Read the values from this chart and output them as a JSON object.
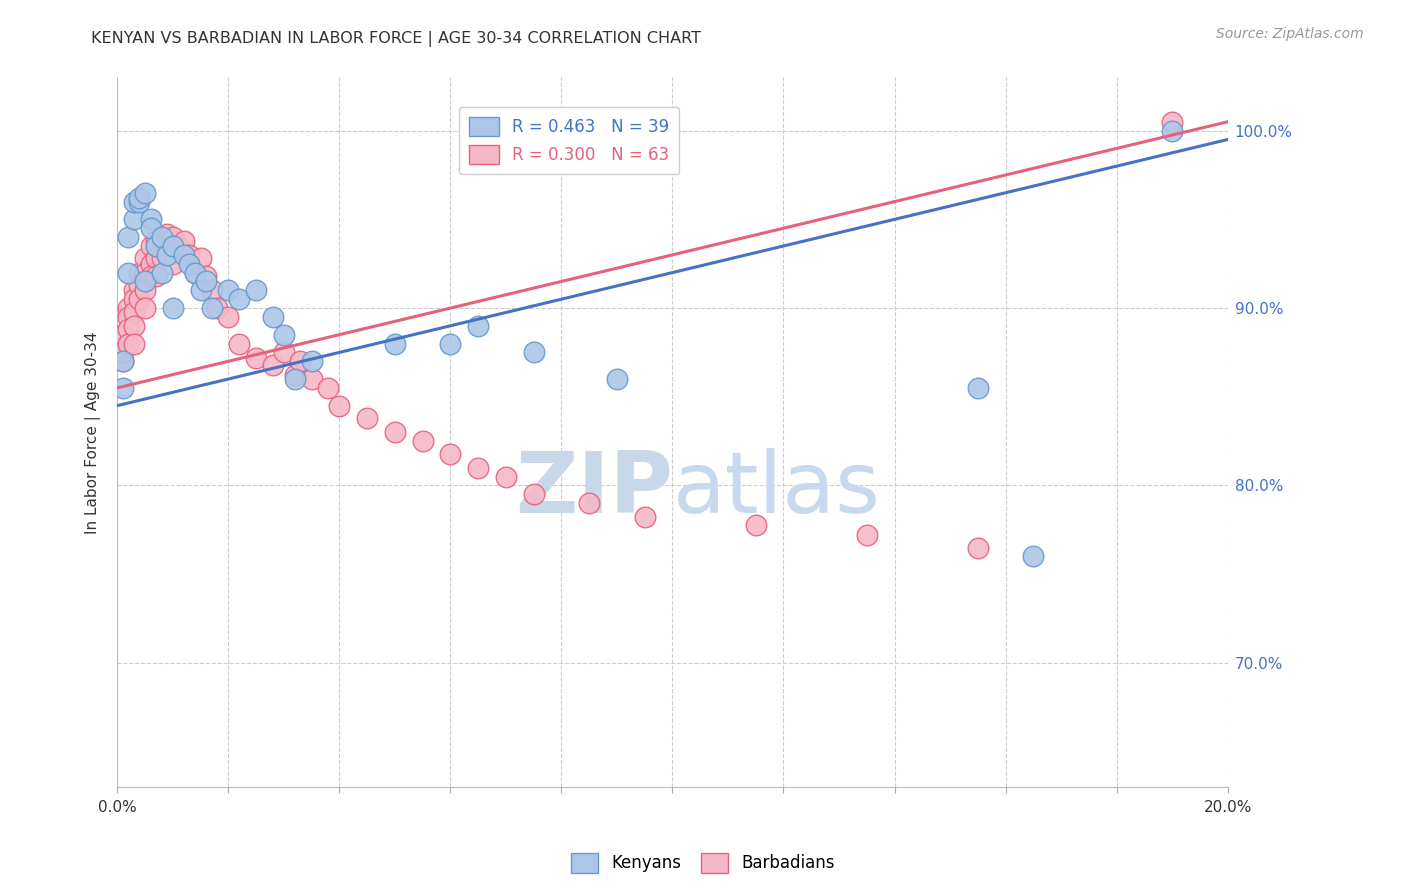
{
  "title": "KENYAN VS BARBADIAN IN LABOR FORCE | AGE 30-34 CORRELATION CHART",
  "source_text": "Source: ZipAtlas.com",
  "ylabel": "In Labor Force | Age 30-34",
  "xlim": [
    0.0,
    0.2
  ],
  "ylim": [
    0.63,
    1.03
  ],
  "ytick_positions": [
    0.7,
    0.8,
    0.9,
    1.0
  ],
  "ytick_labels": [
    "70.0%",
    "80.0%",
    "90.0%",
    "100.0%"
  ],
  "legend_label_blue": "R = 0.463   N = 39",
  "legend_label_pink": "R = 0.300   N = 63",
  "blue_line_color": "#4472c4",
  "pink_line_color": "#e8607a",
  "dot_blue_face": "#adc6e8",
  "dot_blue_edge": "#6699cc",
  "dot_pink_face": "#f5b8c8",
  "dot_pink_edge": "#e8607a",
  "watermark_zip_color": "#c8d8e8",
  "watermark_atlas_color": "#c8d8ee",
  "background_color": "#ffffff",
  "grid_color": "#cccccc",
  "kenyan_x": [
    0.001,
    0.001,
    0.002,
    0.002,
    0.003,
    0.003,
    0.004,
    0.004,
    0.005,
    0.005,
    0.006,
    0.006,
    0.007,
    0.008,
    0.008,
    0.009,
    0.01,
    0.01,
    0.012,
    0.013,
    0.014,
    0.015,
    0.016,
    0.017,
    0.02,
    0.022,
    0.025,
    0.028,
    0.03,
    0.032,
    0.035,
    0.05,
    0.06,
    0.065,
    0.075,
    0.09,
    0.155,
    0.165,
    0.19
  ],
  "kenyan_y": [
    0.855,
    0.87,
    0.92,
    0.94,
    0.95,
    0.96,
    0.96,
    0.962,
    0.965,
    0.915,
    0.95,
    0.945,
    0.935,
    0.94,
    0.92,
    0.93,
    0.935,
    0.9,
    0.93,
    0.925,
    0.92,
    0.91,
    0.915,
    0.9,
    0.91,
    0.905,
    0.91,
    0.895,
    0.885,
    0.86,
    0.87,
    0.88,
    0.88,
    0.89,
    0.875,
    0.86,
    0.855,
    0.76,
    1.0
  ],
  "barbadian_x": [
    0.001,
    0.001,
    0.001,
    0.001,
    0.002,
    0.002,
    0.002,
    0.002,
    0.003,
    0.003,
    0.003,
    0.003,
    0.003,
    0.004,
    0.004,
    0.004,
    0.005,
    0.005,
    0.005,
    0.005,
    0.006,
    0.006,
    0.006,
    0.007,
    0.007,
    0.007,
    0.008,
    0.008,
    0.009,
    0.009,
    0.01,
    0.01,
    0.011,
    0.012,
    0.013,
    0.014,
    0.015,
    0.016,
    0.017,
    0.018,
    0.02,
    0.022,
    0.025,
    0.028,
    0.03,
    0.032,
    0.033,
    0.035,
    0.038,
    0.04,
    0.045,
    0.05,
    0.055,
    0.06,
    0.065,
    0.07,
    0.075,
    0.085,
    0.095,
    0.115,
    0.135,
    0.155,
    0.19
  ],
  "barbadian_y": [
    0.87,
    0.878,
    0.885,
    0.875,
    0.9,
    0.895,
    0.888,
    0.88,
    0.91,
    0.905,
    0.898,
    0.89,
    0.88,
    0.92,
    0.913,
    0.905,
    0.928,
    0.92,
    0.91,
    0.9,
    0.935,
    0.925,
    0.918,
    0.938,
    0.928,
    0.918,
    0.94,
    0.928,
    0.942,
    0.93,
    0.94,
    0.925,
    0.935,
    0.938,
    0.93,
    0.92,
    0.928,
    0.918,
    0.91,
    0.9,
    0.895,
    0.88,
    0.872,
    0.868,
    0.875,
    0.862,
    0.87,
    0.86,
    0.855,
    0.845,
    0.838,
    0.83,
    0.825,
    0.818,
    0.81,
    0.805,
    0.795,
    0.79,
    0.782,
    0.778,
    0.772,
    0.765,
    1.005
  ],
  "kenyan_line_x": [
    0.0,
    0.2
  ],
  "kenyan_line_y": [
    0.845,
    0.995
  ],
  "barbadian_line_x": [
    0.0,
    0.2
  ],
  "barbadian_line_y": [
    0.855,
    1.005
  ]
}
